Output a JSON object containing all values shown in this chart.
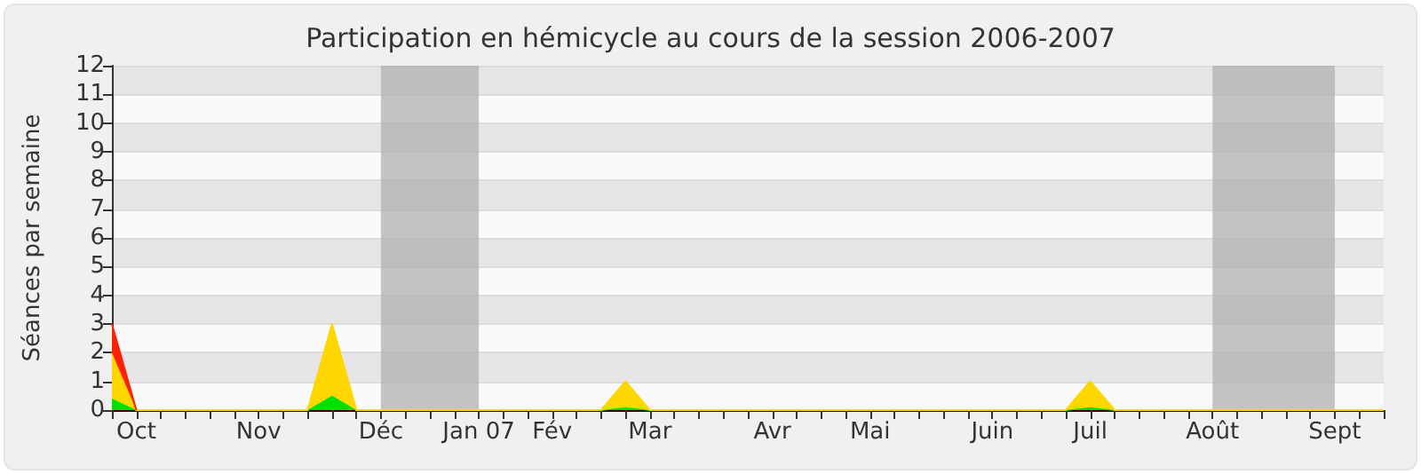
{
  "chart_data": {
    "type": "area",
    "title": "Participation en hémicycle au cours de la session 2006-2007",
    "ylabel": "Séances par semaine",
    "stacked": true,
    "grid": "y",
    "categories": [
      null,
      "Oct",
      null,
      null,
      null,
      null,
      "Nov",
      null,
      null,
      null,
      null,
      "Déc",
      null,
      null,
      null,
      "Jan 07",
      null,
      null,
      "Fév",
      null,
      null,
      null,
      "Mar",
      null,
      null,
      null,
      null,
      "Avr",
      null,
      null,
      null,
      "Mai",
      null,
      null,
      null,
      null,
      "Juin",
      null,
      null,
      null,
      "Juil",
      null,
      null,
      null,
      null,
      "Août",
      null,
      null,
      null,
      null,
      "Sept",
      null,
      null
    ],
    "series": [
      {
        "color": "#00e000",
        "values": [
          0.4,
          0,
          0,
          0,
          0,
          0,
          0,
          0,
          0,
          0.5,
          0,
          0,
          0,
          0,
          0,
          0,
          0,
          0,
          0,
          0,
          0,
          0.1,
          0,
          0,
          0,
          0,
          0,
          0,
          0,
          0,
          0,
          0,
          0,
          0,
          0,
          0,
          0,
          0,
          0,
          0,
          0.1,
          0,
          0,
          0,
          0,
          0,
          0,
          0,
          0,
          0,
          0,
          0,
          0
        ]
      },
      {
        "color": "#ffd700",
        "values": [
          1.6,
          0,
          0,
          0,
          0,
          0,
          0,
          0,
          0,
          2.5,
          0,
          0,
          0,
          0,
          0,
          0,
          0,
          0,
          0,
          0,
          0,
          0.9,
          0,
          0,
          0,
          0,
          0,
          0,
          0,
          0,
          0,
          0,
          0,
          0,
          0,
          0,
          0,
          0,
          0,
          0,
          0.9,
          0,
          0,
          0,
          0,
          0,
          0,
          0,
          0,
          0,
          0,
          0,
          0
        ]
      },
      {
        "color": "#ff2000",
        "values": [
          1,
          0,
          null,
          null,
          null,
          null,
          null,
          null,
          null,
          null,
          null,
          null,
          null,
          null,
          null,
          null,
          null,
          null,
          null,
          null,
          null,
          null,
          null,
          null,
          null,
          null,
          null,
          null,
          null,
          null,
          null,
          null,
          null,
          null,
          null,
          null,
          null,
          null,
          null,
          null,
          null,
          null,
          null,
          null,
          null,
          null,
          null,
          null,
          null,
          null,
          null,
          null,
          null
        ]
      }
    ],
    "ylim": [
      0,
      12
    ],
    "yticks": [
      0,
      1,
      2,
      3,
      4,
      5,
      6,
      7,
      8,
      9,
      10,
      11,
      12
    ],
    "bands": [
      {
        "axis": "x",
        "from": "Déc",
        "to": "Jan 07",
        "color": "#b0b0b0"
      },
      {
        "axis": "x",
        "from": "Août",
        "to": "Sept",
        "color": "#b0b0b0"
      }
    ]
  }
}
